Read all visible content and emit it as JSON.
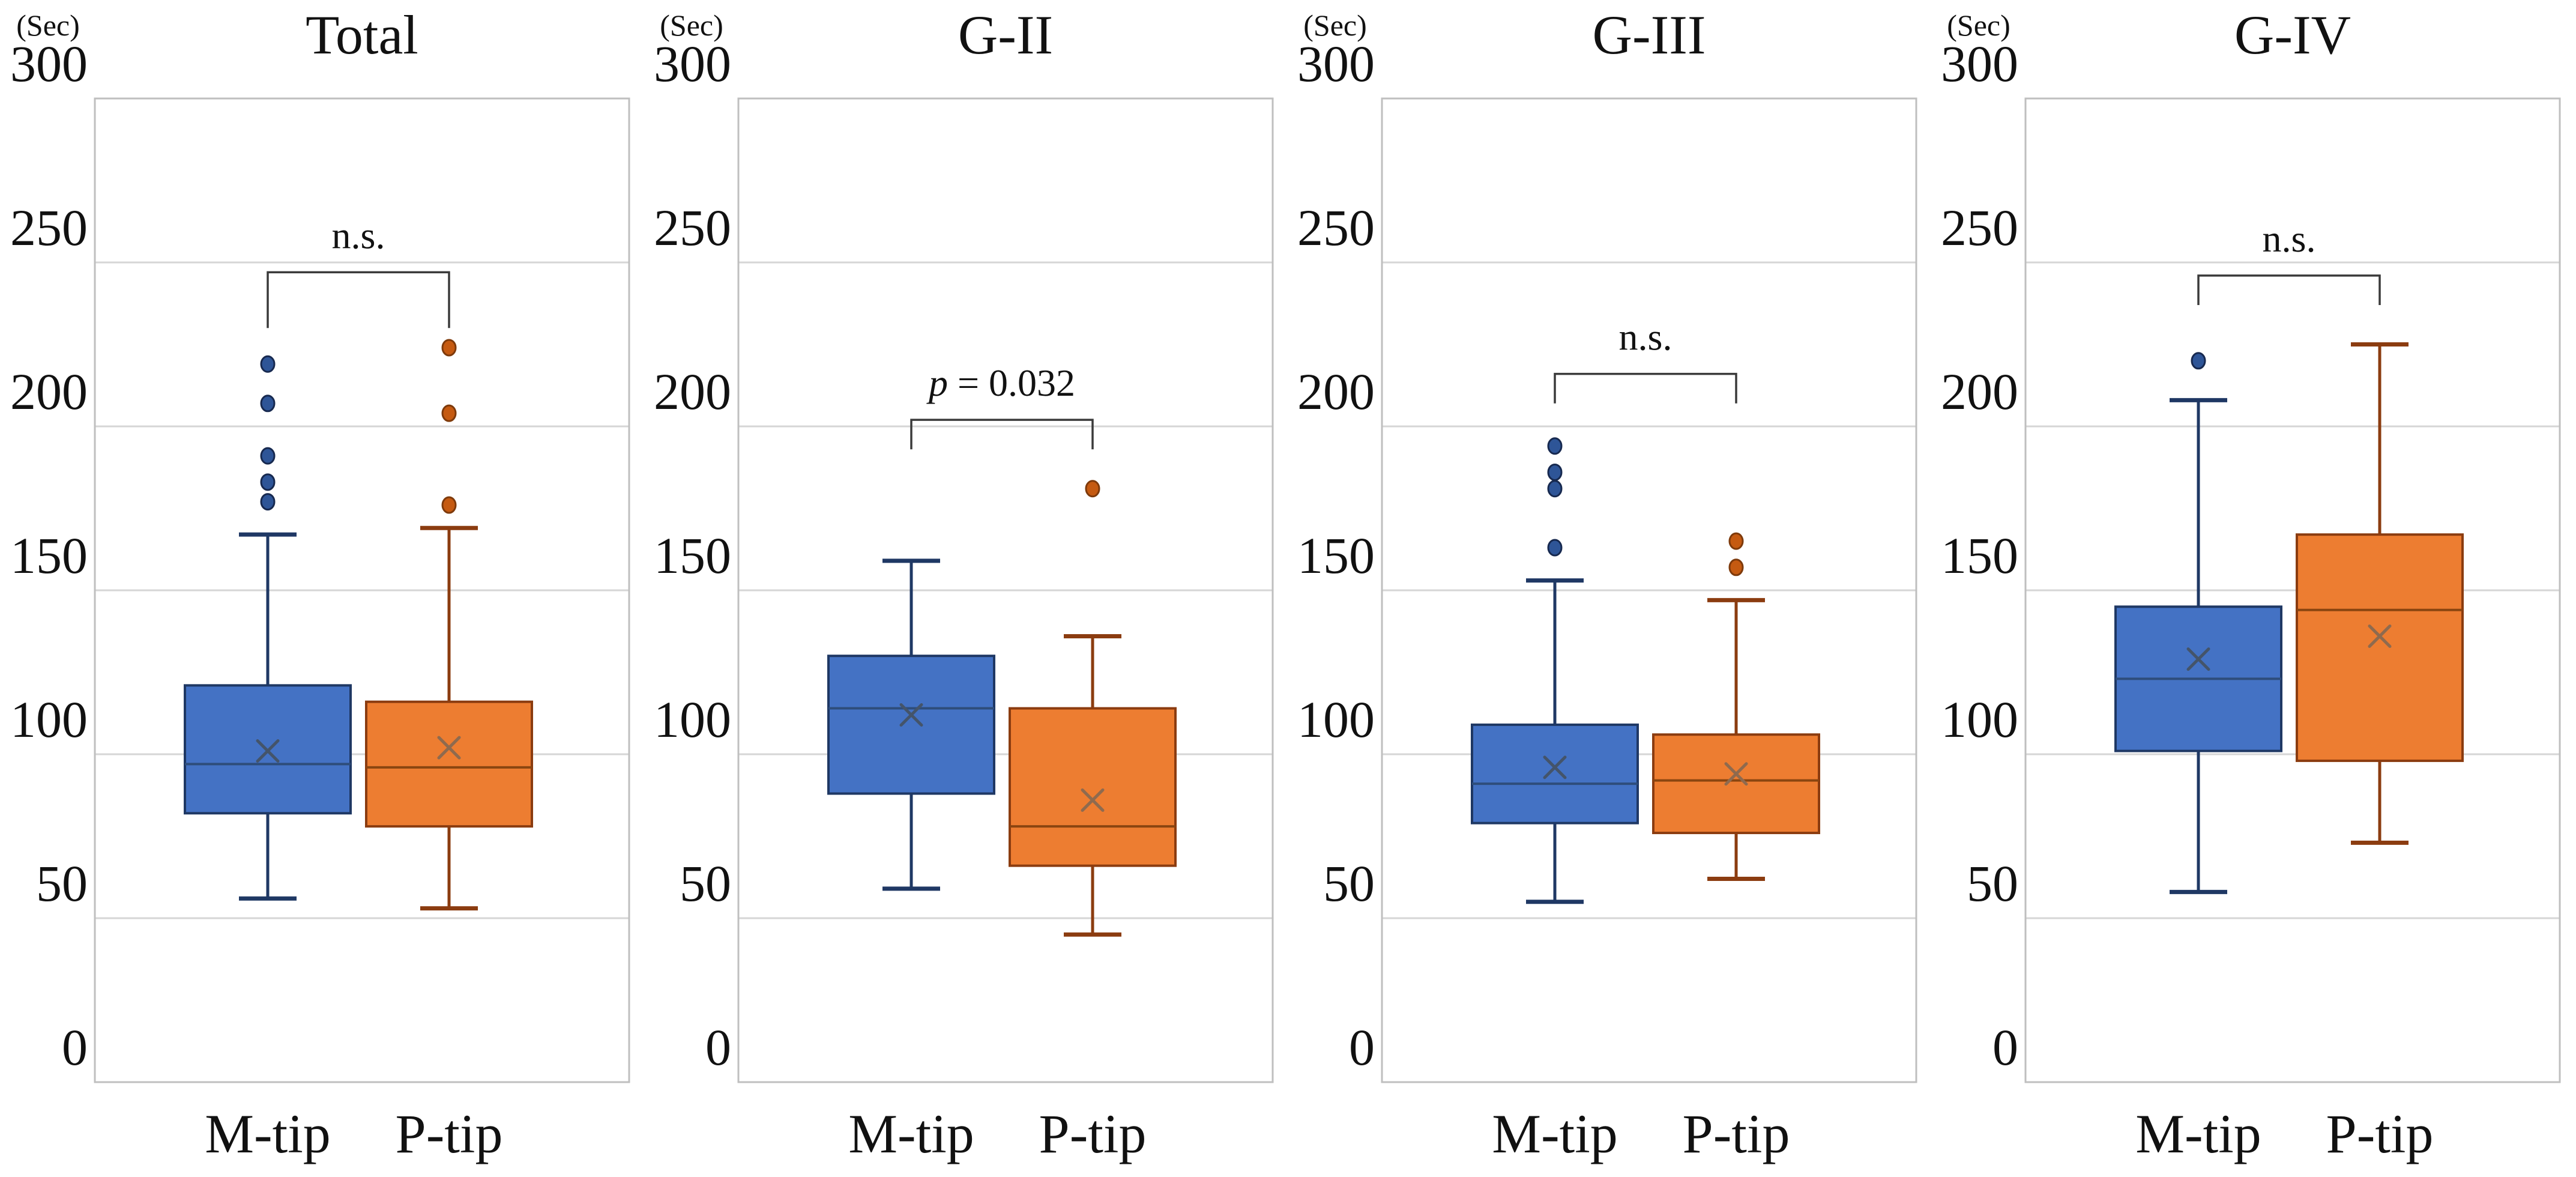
{
  "figure": {
    "unit_label": "(Sec)",
    "categories": [
      "M-tip",
      "P-tip"
    ]
  },
  "chart_data": {
    "type": "boxplot",
    "title": "",
    "xlabel": "",
    "ylabel": "(Sec)",
    "ylim": [
      0,
      300
    ],
    "ytick_step": 50,
    "ytick_labels": [
      "300",
      "250",
      "200",
      "150",
      "100",
      "50",
      "0"
    ],
    "grid": true,
    "legend_position": "none",
    "categories": [
      "M-tip",
      "P-tip"
    ],
    "panels": [
      {
        "title": "Total",
        "sig_label": "n.s.",
        "sig_italic_p": false,
        "bracket_y": 247,
        "bracket_tip_y": 230,
        "boxes": [
          {
            "name": "M-tip",
            "whisker_low": 56,
            "q1": 82,
            "median": 97,
            "mean": 101,
            "q3": 121,
            "whisker_high": 167,
            "outliers": [
              177,
              183,
              191,
              207,
              219
            ]
          },
          {
            "name": "P-tip",
            "whisker_low": 53,
            "q1": 78,
            "median": 96,
            "mean": 102,
            "q3": 116,
            "whisker_high": 169,
            "outliers": [
              176,
              204,
              224
            ]
          }
        ]
      },
      {
        "title": "G-II",
        "sig_label": "p = 0.032",
        "sig_italic_p": true,
        "bracket_y": 202,
        "bracket_tip_y": 193,
        "boxes": [
          {
            "name": "M-tip",
            "whisker_low": 59,
            "q1": 88,
            "median": 114,
            "mean": 112,
            "q3": 130,
            "whisker_high": 159,
            "outliers": []
          },
          {
            "name": "P-tip",
            "whisker_low": 45,
            "q1": 66,
            "median": 78,
            "mean": 86,
            "q3": 114,
            "whisker_high": 136,
            "outliers": [
              181
            ]
          }
        ]
      },
      {
        "title": "G-III",
        "sig_label": "n.s.",
        "sig_italic_p": false,
        "bracket_y": 216,
        "bracket_tip_y": 207,
        "boxes": [
          {
            "name": "M-tip",
            "whisker_low": 55,
            "q1": 79,
            "median": 91,
            "mean": 96,
            "q3": 109,
            "whisker_high": 153,
            "outliers": [
              163,
              181,
              186,
              194
            ]
          },
          {
            "name": "P-tip",
            "whisker_low": 62,
            "q1": 76,
            "median": 92,
            "mean": 94,
            "q3": 106,
            "whisker_high": 147,
            "outliers": [
              157,
              165
            ]
          }
        ]
      },
      {
        "title": "G-IV",
        "sig_label": "n.s.",
        "sig_italic_p": false,
        "bracket_y": 246,
        "bracket_tip_y": 237,
        "boxes": [
          {
            "name": "M-tip",
            "whisker_low": 58,
            "q1": 101,
            "median": 123,
            "mean": 129,
            "q3": 145,
            "whisker_high": 208,
            "outliers": [
              220
            ]
          },
          {
            "name": "P-tip",
            "whisker_low": 73,
            "q1": 98,
            "median": 144,
            "mean": 136,
            "q3": 167,
            "whisker_high": 225,
            "outliers": []
          }
        ]
      }
    ],
    "colors": {
      "m_tip_fill": "#4472C4",
      "m_tip_border": "#1F3864",
      "m_tip_median": "#2E4D7B",
      "m_tip_mean": "#44546A",
      "m_tip_outlier_fill": "#2E5597",
      "m_tip_outlier_border": "#17294F",
      "p_tip_fill": "#ED7D31",
      "p_tip_border": "#8B3C10",
      "p_tip_median": "#8A4510",
      "p_tip_mean": "#8F6A4E",
      "p_tip_outlier_fill": "#C55A11",
      "p_tip_outlier_border": "#7E3A0B",
      "gridline": "#D6D6D6",
      "frame": "#BFBFBF",
      "bracket": "#3A3A3A",
      "text": "#111111"
    }
  }
}
